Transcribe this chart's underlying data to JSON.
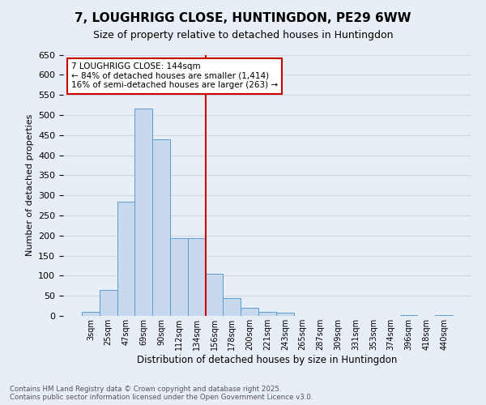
{
  "title": "7, LOUGHRIGG CLOSE, HUNTINGDON, PE29 6WW",
  "subtitle": "Size of property relative to detached houses in Huntingdon",
  "xlabel": "Distribution of detached houses by size in Huntingdon",
  "ylabel": "Number of detached properties",
  "bar_labels": [
    "3sqm",
    "25sqm",
    "47sqm",
    "69sqm",
    "90sqm",
    "112sqm",
    "134sqm",
    "156sqm",
    "178sqm",
    "200sqm",
    "221sqm",
    "243sqm",
    "265sqm",
    "287sqm",
    "309sqm",
    "331sqm",
    "353sqm",
    "374sqm",
    "396sqm",
    "418sqm",
    "440sqm"
  ],
  "bar_values": [
    10,
    65,
    285,
    515,
    440,
    193,
    193,
    105,
    45,
    20,
    10,
    8,
    0,
    0,
    0,
    0,
    0,
    0,
    3,
    0,
    3
  ],
  "bar_color": "#c9d9ed",
  "bar_edge_color": "#5b9bd5",
  "vline_x": 6.5,
  "vline_color": "#cc0000",
  "annotation_text": "7 LOUGHRIGG CLOSE: 144sqm\n← 84% of detached houses are smaller (1,414)\n16% of semi-detached houses are larger (263) →",
  "annotation_box_color": "#cc0000",
  "ylim": [
    0,
    650
  ],
  "yticks": [
    0,
    50,
    100,
    150,
    200,
    250,
    300,
    350,
    400,
    450,
    500,
    550,
    600,
    650
  ],
  "grid_color": "#d0d8e8",
  "background_color": "#e8eef5",
  "footer_line1": "Contains HM Land Registry data © Crown copyright and database right 2025.",
  "footer_line2": "Contains public sector information licensed under the Open Government Licence v3.0."
}
